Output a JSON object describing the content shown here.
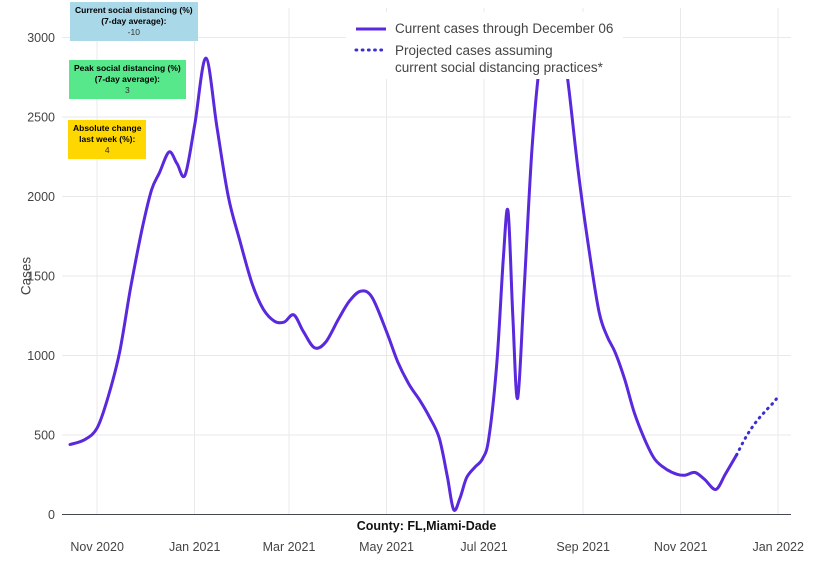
{
  "chart_data": {
    "type": "line",
    "title": "",
    "xlabel": "County: FL,Miami-Dade",
    "ylabel": "Cases",
    "x_tick_labels": [
      "Nov 2020",
      "Jan 2021",
      "Mar 2021",
      "May 2021",
      "Jul 2021",
      "Sep 2021",
      "Nov 2021",
      "Jan 2022"
    ],
    "x_tick_dates": [
      "2020-11-01",
      "2021-01-01",
      "2021-03-01",
      "2021-05-01",
      "2021-07-01",
      "2021-09-01",
      "2021-11-01",
      "2022-01-01"
    ],
    "y_ticks": [
      0,
      500,
      1000,
      1500,
      2000,
      2500,
      3000
    ],
    "xlim_dates": [
      "2020-10-10",
      "2022-01-09"
    ],
    "ylim": [
      0,
      3185
    ],
    "grid": true,
    "legend_position": "top-center",
    "series": [
      {
        "name": "Current cases through December 06",
        "legend_lines": [
          "Current cases through December 06"
        ],
        "line_style": "solid",
        "color": "#5a28dd",
        "points": [
          [
            "2020-10-15",
            440
          ],
          [
            "2020-10-24",
            470
          ],
          [
            "2020-11-01",
            545
          ],
          [
            "2020-11-08",
            745
          ],
          [
            "2020-11-15",
            1020
          ],
          [
            "2020-11-22",
            1430
          ],
          [
            "2020-11-29",
            1790
          ],
          [
            "2020-12-05",
            2040
          ],
          [
            "2020-12-10",
            2150
          ],
          [
            "2020-12-16",
            2280
          ],
          [
            "2020-12-21",
            2205
          ],
          [
            "2020-12-26",
            2135
          ],
          [
            "2021-01-01",
            2450
          ],
          [
            "2021-01-08",
            2870
          ],
          [
            "2021-01-15",
            2430
          ],
          [
            "2021-01-22",
            2000
          ],
          [
            "2021-01-29",
            1730
          ],
          [
            "2021-02-06",
            1450
          ],
          [
            "2021-02-13",
            1290
          ],
          [
            "2021-02-20",
            1215
          ],
          [
            "2021-02-26",
            1210
          ],
          [
            "2021-03-04",
            1255
          ],
          [
            "2021-03-10",
            1150
          ],
          [
            "2021-03-17",
            1048
          ],
          [
            "2021-03-24",
            1085
          ],
          [
            "2021-04-01",
            1230
          ],
          [
            "2021-04-08",
            1345
          ],
          [
            "2021-04-15",
            1405
          ],
          [
            "2021-04-22",
            1365
          ],
          [
            "2021-05-01",
            1150
          ],
          [
            "2021-05-08",
            960
          ],
          [
            "2021-05-15",
            820
          ],
          [
            "2021-05-22",
            715
          ],
          [
            "2021-05-28",
            610
          ],
          [
            "2021-06-03",
            480
          ],
          [
            "2021-06-08",
            240
          ],
          [
            "2021-06-12",
            30
          ],
          [
            "2021-06-16",
            105
          ],
          [
            "2021-06-20",
            230
          ],
          [
            "2021-06-25",
            295
          ],
          [
            "2021-06-30",
            350
          ],
          [
            "2021-07-04",
            480
          ],
          [
            "2021-07-09",
            950
          ],
          [
            "2021-07-13",
            1600
          ],
          [
            "2021-07-16",
            1910
          ],
          [
            "2021-07-19",
            1250
          ],
          [
            "2021-07-22",
            730
          ],
          [
            "2021-07-26",
            1400
          ],
          [
            "2021-07-31",
            2300
          ],
          [
            "2021-08-05",
            2850
          ],
          [
            "2021-08-10",
            3080
          ],
          [
            "2021-08-14",
            3120
          ],
          [
            "2021-08-18",
            3040
          ],
          [
            "2021-08-23",
            2680
          ],
          [
            "2021-08-29",
            2150
          ],
          [
            "2021-09-05",
            1640
          ],
          [
            "2021-09-11",
            1270
          ],
          [
            "2021-09-16",
            1120
          ],
          [
            "2021-09-21",
            1020
          ],
          [
            "2021-09-27",
            850
          ],
          [
            "2021-10-03",
            640
          ],
          [
            "2021-10-10",
            460
          ],
          [
            "2021-10-16",
            345
          ],
          [
            "2021-10-23",
            285
          ],
          [
            "2021-10-30",
            252
          ],
          [
            "2021-11-04",
            248
          ],
          [
            "2021-11-10",
            264
          ],
          [
            "2021-11-16",
            220
          ],
          [
            "2021-11-23",
            158
          ],
          [
            "2021-11-29",
            255
          ],
          [
            "2021-12-06",
            375
          ]
        ]
      },
      {
        "name": "Projected cases assuming current social distancing practices*",
        "legend_lines": [
          "Projected cases assuming",
          "current social distancing practices*"
        ],
        "line_style": "dotted",
        "color": "#3c2fd0",
        "points": [
          [
            "2021-12-06",
            375
          ],
          [
            "2021-12-12",
            490
          ],
          [
            "2021-12-18",
            580
          ],
          [
            "2021-12-24",
            650
          ],
          [
            "2021-12-30",
            715
          ],
          [
            "2022-01-01",
            750
          ]
        ]
      }
    ],
    "annotations": [
      {
        "lines": [
          "Current social distancing (%)",
          "(7-day average):"
        ],
        "value": "-10",
        "bg": "#a9d8e8"
      },
      {
        "lines": [
          "Peak social distancing (%)",
          "(7-day average):"
        ],
        "value": "3",
        "bg": "#57e88c"
      },
      {
        "lines": [
          "Absolute change",
          "last week (%):"
        ],
        "value": "4",
        "bg": "#ffd700"
      }
    ]
  }
}
